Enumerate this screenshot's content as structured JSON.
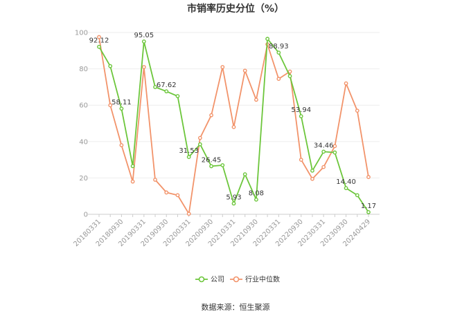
{
  "chart_data": {
    "type": "line",
    "title": "市销率历史分位（%）",
    "ylim": [
      0,
      100
    ],
    "yticks": [
      0,
      20,
      40,
      60,
      80,
      100
    ],
    "x_tick_labels": [
      "20180331",
      "20180930",
      "20190331",
      "20190930",
      "20200331",
      "20200930",
      "20210331",
      "20210930",
      "20220331",
      "20220930",
      "20230331",
      "20230930",
      "20240429"
    ],
    "grid": true,
    "legend_position": "bottom",
    "series": [
      {
        "name": "公司",
        "color": "#6cc63b",
        "values": [
          92.12,
          81.5,
          58.11,
          26.5,
          95.05,
          70.0,
          67.62,
          65.0,
          31.53,
          38.5,
          26.45,
          27.0,
          5.93,
          22.0,
          8.08,
          96.5,
          88.93,
          76.0,
          53.94,
          24.0,
          34.46,
          34.0,
          14.4,
          10.5,
          1.17
        ],
        "data_labels": [
          {
            "index": 0,
            "text": "92.12"
          },
          {
            "index": 2,
            "text": "58.11"
          },
          {
            "index": 4,
            "text": "95.05"
          },
          {
            "index": 6,
            "text": "67.62"
          },
          {
            "index": 8,
            "text": "31.53"
          },
          {
            "index": 10,
            "text": "26.45"
          },
          {
            "index": 12,
            "text": "5.93"
          },
          {
            "index": 14,
            "text": "8.08"
          },
          {
            "index": 16,
            "text": "88.93"
          },
          {
            "index": 18,
            "text": "53.94"
          },
          {
            "index": 20,
            "text": "34.46"
          },
          {
            "index": 22,
            "text": "14.40"
          },
          {
            "index": 24,
            "text": "1.17"
          }
        ]
      },
      {
        "name": "行业中位数",
        "color": "#f2936a",
        "values": [
          97.5,
          60.0,
          38.0,
          18.0,
          81.0,
          19.0,
          12.0,
          10.5,
          0.3,
          42.0,
          54.5,
          81.0,
          48.0,
          79.0,
          63.0,
          93.5,
          74.5,
          78.5,
          30.0,
          19.5,
          26.0,
          37.5,
          72.0,
          57.0,
          20.5
        ]
      }
    ]
  },
  "source_text": "数据来源：恒生聚源"
}
